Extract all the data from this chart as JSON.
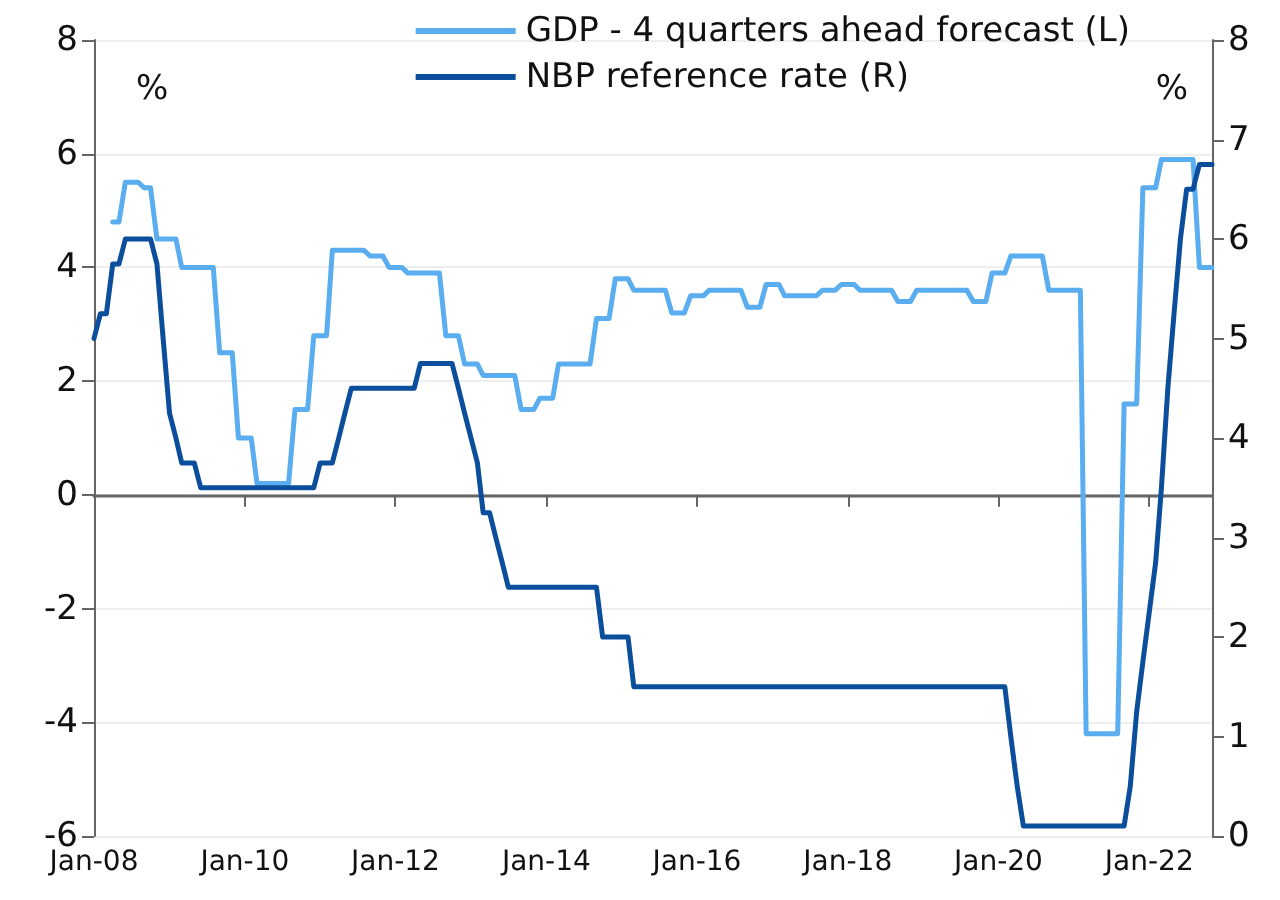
{
  "chart_data": {
    "type": "line",
    "ylabel": "%",
    "y2label": "%",
    "xlim": [
      "2008-01",
      "2022-11"
    ],
    "xticks": [
      {
        "value": "2008-01",
        "label": "Jan-08"
      },
      {
        "value": "2010-01",
        "label": "Jan-10"
      },
      {
        "value": "2012-01",
        "label": "Jan-12"
      },
      {
        "value": "2014-01",
        "label": "Jan-14"
      },
      {
        "value": "2016-01",
        "label": "Jan-16"
      },
      {
        "value": "2018-01",
        "label": "Jan-18"
      },
      {
        "value": "2020-01",
        "label": "Jan-20"
      },
      {
        "value": "2022-01",
        "label": "Jan-22"
      }
    ],
    "ylim": [
      -6,
      8
    ],
    "yticks": [
      -6,
      -4,
      -2,
      0,
      2,
      4,
      6,
      8
    ],
    "y2lim": [
      0,
      8
    ],
    "y2ticks": [
      0,
      1,
      2,
      3,
      4,
      5,
      6,
      7,
      8
    ],
    "grid": "y",
    "legend": "top right",
    "marker": "none",
    "line_style": "solid",
    "series": [
      {
        "name": "GDP - 4 quarters ahead forecast (L)",
        "color": "#5aaef0",
        "x": [
          "2008-04",
          "2008-05",
          "2008-06",
          "2008-08",
          "2008-09",
          "2008-10",
          "2008-11",
          "2009-02",
          "2009-03",
          "2009-08",
          "2009-09",
          "2009-11",
          "2009-12",
          "2010-02",
          "2010-03",
          "2010-08",
          "2010-09",
          "2010-11",
          "2010-12",
          "2011-02",
          "2011-03",
          "2011-08",
          "2011-09",
          "2011-11",
          "2011-12",
          "2012-02",
          "2012-03",
          "2012-08",
          "2012-09",
          "2012-11",
          "2012-12",
          "2013-02",
          "2013-03",
          "2013-08",
          "2013-09",
          "2013-11",
          "2013-12",
          "2014-02",
          "2014-03",
          "2014-08",
          "2014-09",
          "2014-11",
          "2014-12",
          "2015-02",
          "2015-03",
          "2015-08",
          "2015-09",
          "2015-11",
          "2015-12",
          "2016-02",
          "2016-03",
          "2016-08",
          "2016-09",
          "2016-11",
          "2016-12",
          "2017-02",
          "2017-03",
          "2017-08",
          "2017-09",
          "2017-11",
          "2017-12",
          "2018-02",
          "2018-03",
          "2018-08",
          "2018-09",
          "2018-11",
          "2018-12",
          "2019-08",
          "2019-09",
          "2019-11",
          "2019-12",
          "2020-02",
          "2020-03",
          "2020-08",
          "2020-09",
          "2021-02",
          "2021-03",
          "2021-08",
          "2021-09",
          "2021-11",
          "2021-12",
          "2022-02",
          "2022-03",
          "2022-08",
          "2022-09",
          "2022-11"
        ],
        "values": [
          4.8,
          4.8,
          5.5,
          5.5,
          5.4,
          5.4,
          4.5,
          4.5,
          4.0,
          4.0,
          2.5,
          2.5,
          1.0,
          1.0,
          0.2,
          0.2,
          1.5,
          1.5,
          2.8,
          2.8,
          4.3,
          4.3,
          4.2,
          4.2,
          4.0,
          4.0,
          3.9,
          3.9,
          2.8,
          2.8,
          2.3,
          2.3,
          2.1,
          2.1,
          1.5,
          1.5,
          1.7,
          1.7,
          2.3,
          2.3,
          3.1,
          3.1,
          3.8,
          3.8,
          3.6,
          3.6,
          3.2,
          3.2,
          3.5,
          3.5,
          3.6,
          3.6,
          3.3,
          3.3,
          3.7,
          3.7,
          3.5,
          3.5,
          3.6,
          3.6,
          3.7,
          3.7,
          3.6,
          3.6,
          3.4,
          3.4,
          3.6,
          3.6,
          3.4,
          3.4,
          3.9,
          3.9,
          4.2,
          4.2,
          3.6,
          3.6,
          -4.2,
          -4.2,
          1.6,
          1.6,
          5.4,
          5.4,
          5.9,
          5.9,
          4.0,
          4.0
        ]
      },
      {
        "name": "NBP reference rate (R)",
        "color": "#0b4f9c",
        "axis": "y2",
        "x": [
          "2008-01",
          "2008-02",
          "2008-03",
          "2008-04",
          "2008-05",
          "2008-06",
          "2008-10",
          "2008-11",
          "2008-12",
          "2009-01",
          "2009-02",
          "2009-03",
          "2009-05",
          "2009-06",
          "2010-12",
          "2011-01",
          "2011-03",
          "2011-04",
          "2011-05",
          "2011-06",
          "2012-04",
          "2012-05",
          "2012-10",
          "2012-11",
          "2012-12",
          "2013-01",
          "2013-02",
          "2013-03",
          "2013-04",
          "2013-05",
          "2013-06",
          "2013-07",
          "2014-09",
          "2014-10",
          "2015-02",
          "2015-03",
          "2020-02",
          "2020-03",
          "2020-04",
          "2020-05",
          "2021-09",
          "2021-10",
          "2021-11",
          "2021-12",
          "2022-01",
          "2022-02",
          "2022-03",
          "2022-04",
          "2022-05",
          "2022-06",
          "2022-07",
          "2022-08",
          "2022-09",
          "2022-11"
        ],
        "values": [
          5.0,
          5.25,
          5.25,
          5.75,
          5.75,
          6.0,
          6.0,
          5.75,
          5.0,
          4.25,
          4.0,
          3.75,
          3.75,
          3.5,
          3.5,
          3.75,
          3.75,
          4.0,
          4.25,
          4.5,
          4.5,
          4.75,
          4.75,
          4.5,
          4.25,
          4.0,
          3.75,
          3.25,
          3.25,
          3.0,
          2.75,
          2.5,
          2.5,
          2.0,
          2.0,
          1.5,
          1.5,
          1.0,
          0.5,
          0.1,
          0.1,
          0.5,
          1.25,
          1.75,
          2.25,
          2.75,
          3.5,
          4.5,
          5.25,
          6.0,
          6.5,
          6.5,
          6.75,
          6.75
        ]
      }
    ]
  }
}
